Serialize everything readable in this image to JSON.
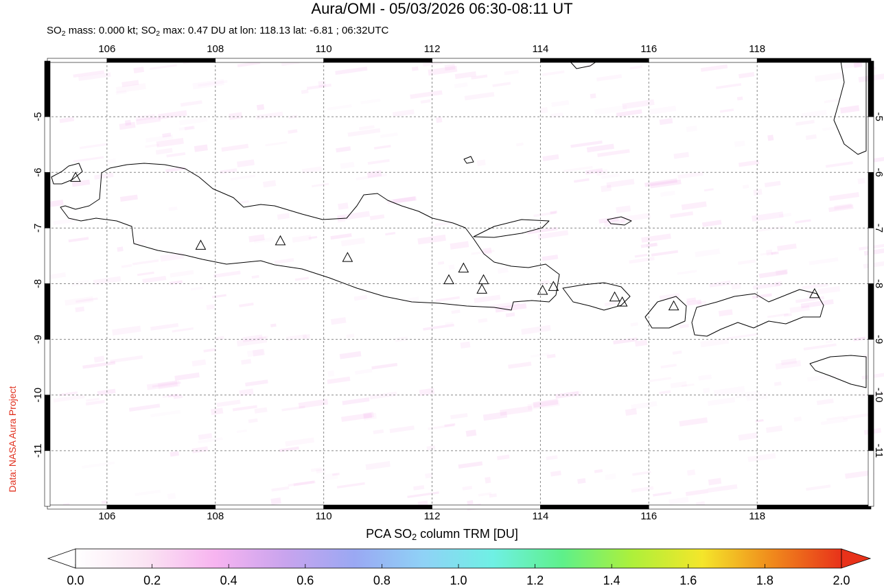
{
  "title": "Aura/OMI - 05/03/2026 06:30-08:11 UT",
  "subtitle": {
    "prefix": "SO",
    "sub1": "2",
    "mid": " mass: 0.000 kt; SO",
    "sub2": "2",
    "suffix": " max: 0.47 DU at lon: 118.13 lat: -6.81 ; 06:32UTC"
  },
  "credit": "Data: NASA Aura Project",
  "map": {
    "lon_ticks": [
      "106",
      "108",
      "110",
      "112",
      "114",
      "116",
      "118"
    ],
    "lat_ticks": [
      "-5",
      "-6",
      "-7",
      "-8",
      "-9",
      "-10",
      "-11"
    ],
    "lon_range": [
      104.9,
      120.1
    ],
    "lat_range": [
      -12.0,
      -4.0
    ],
    "volcano_icon": "triangle-icon",
    "volcanoes": [
      {
        "lon": 105.42,
        "lat": -6.1
      },
      {
        "lon": 107.73,
        "lat": -7.32
      },
      {
        "lon": 109.2,
        "lat": -7.24
      },
      {
        "lon": 110.44,
        "lat": -7.54
      },
      {
        "lon": 112.31,
        "lat": -7.94
      },
      {
        "lon": 112.58,
        "lat": -7.73
      },
      {
        "lon": 112.95,
        "lat": -7.94
      },
      {
        "lon": 112.92,
        "lat": -8.11
      },
      {
        "lon": 114.04,
        "lat": -8.13
      },
      {
        "lon": 114.24,
        "lat": -8.06
      },
      {
        "lon": 115.37,
        "lat": -8.25
      },
      {
        "lon": 115.51,
        "lat": -8.34
      },
      {
        "lon": 116.46,
        "lat": -8.41
      },
      {
        "lon": 119.06,
        "lat": -8.19
      }
    ]
  },
  "colorbar": {
    "title_prefix": "PCA SO",
    "title_sub": "2",
    "title_suffix": " column TRM [DU]",
    "labels": [
      "0.0",
      "0.2",
      "0.4",
      "0.6",
      "0.8",
      "1.0",
      "1.2",
      "1.4",
      "1.6",
      "1.8",
      "2.0"
    ],
    "colors": [
      "#ffffff",
      "#fbe4f3",
      "#f7b4f0",
      "#c9a4ee",
      "#9aa8f3",
      "#8fd2f6",
      "#6ff0e4",
      "#5ef08a",
      "#aef03a",
      "#f4e62a",
      "#f08a1c",
      "#e8321a"
    ]
  }
}
